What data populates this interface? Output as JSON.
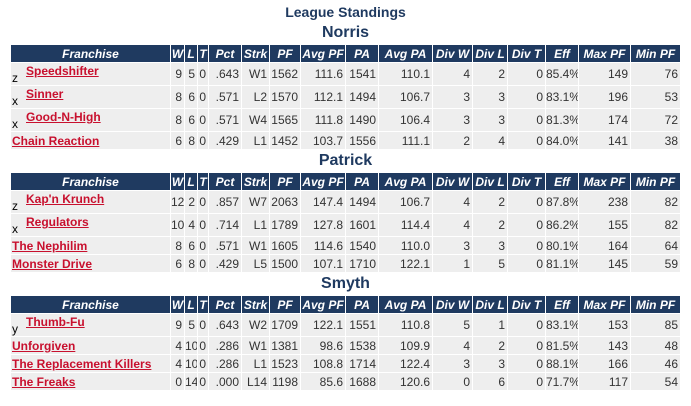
{
  "title": "League Standings",
  "header": [
    "Franchise",
    "W",
    "L",
    "T",
    "Pct",
    "Strk",
    "PF",
    "Avg PF",
    "PA",
    "Avg PA",
    "Div W",
    "Div L",
    "Div T",
    "Eff",
    "Max PF",
    "Min PF"
  ],
  "divisions": [
    {
      "name": "Norris",
      "rows": [
        {
          "clinch": "z",
          "franchise": "Speedshifter",
          "stats": [
            "9",
            "5",
            "0",
            ".643",
            "W1",
            "1562",
            "111.6",
            "1541",
            "110.1",
            "4",
            "2",
            "0",
            "85.4%",
            "149",
            "76"
          ]
        },
        {
          "clinch": "x",
          "franchise": "Sinner",
          "stats": [
            "8",
            "6",
            "0",
            ".571",
            "L2",
            "1570",
            "112.1",
            "1494",
            "106.7",
            "3",
            "3",
            "0",
            "83.1%",
            "196",
            "53"
          ]
        },
        {
          "clinch": "x",
          "franchise": "Good-N-High",
          "stats": [
            "8",
            "6",
            "0",
            ".571",
            "W4",
            "1565",
            "111.8",
            "1490",
            "106.4",
            "3",
            "3",
            "0",
            "81.3%",
            "174",
            "72"
          ]
        },
        {
          "franchise": "Chain Reaction",
          "stats": [
            "6",
            "8",
            "0",
            ".429",
            "L1",
            "1452",
            "103.7",
            "1556",
            "111.1",
            "2",
            "4",
            "0",
            "84.0%",
            "141",
            "38"
          ]
        }
      ]
    },
    {
      "name": "Patrick",
      "rows": [
        {
          "clinch": "z",
          "franchise": "Kap'n Krunch",
          "stats": [
            "12",
            "2",
            "0",
            ".857",
            "W7",
            "2063",
            "147.4",
            "1494",
            "106.7",
            "4",
            "2",
            "0",
            "87.8%",
            "238",
            "82"
          ]
        },
        {
          "clinch": "x",
          "franchise": "Regulators",
          "stats": [
            "10",
            "4",
            "0",
            ".714",
            "L1",
            "1789",
            "127.8",
            "1601",
            "114.4",
            "4",
            "2",
            "0",
            "86.2%",
            "155",
            "82"
          ]
        },
        {
          "franchise": "The Nephilim",
          "stats": [
            "8",
            "6",
            "0",
            ".571",
            "W1",
            "1605",
            "114.6",
            "1540",
            "110.0",
            "3",
            "3",
            "0",
            "80.1%",
            "164",
            "64"
          ]
        },
        {
          "franchise": "Monster Drive",
          "stats": [
            "6",
            "8",
            "0",
            ".429",
            "L5",
            "1500",
            "107.1",
            "1710",
            "122.1",
            "1",
            "5",
            "0",
            "81.1%",
            "145",
            "59"
          ]
        }
      ]
    },
    {
      "name": "Smyth",
      "rows": [
        {
          "clinch": "y",
          "franchise": "Thumb-Fu",
          "stats": [
            "9",
            "5",
            "0",
            ".643",
            "W2",
            "1709",
            "122.1",
            "1551",
            "110.8",
            "5",
            "1",
            "0",
            "83.1%",
            "153",
            "85"
          ]
        },
        {
          "franchise": "Unforgiven",
          "stats": [
            "4",
            "10",
            "0",
            ".286",
            "W1",
            "1381",
            "98.6",
            "1538",
            "109.9",
            "4",
            "2",
            "0",
            "81.5%",
            "143",
            "48"
          ]
        },
        {
          "franchise": "The Replacement Killers",
          "stats": [
            "4",
            "10",
            "0",
            ".286",
            "L1",
            "1523",
            "108.8",
            "1714",
            "122.4",
            "3",
            "3",
            "0",
            "88.1%",
            "166",
            "46"
          ]
        },
        {
          "franchise": "The Freaks",
          "stats": [
            "0",
            "14",
            "0",
            ".000",
            "L14",
            "1198",
            "85.6",
            "1688",
            "120.6",
            "0",
            "6",
            "0",
            "71.7%",
            "117",
            "54"
          ]
        }
      ]
    }
  ]
}
